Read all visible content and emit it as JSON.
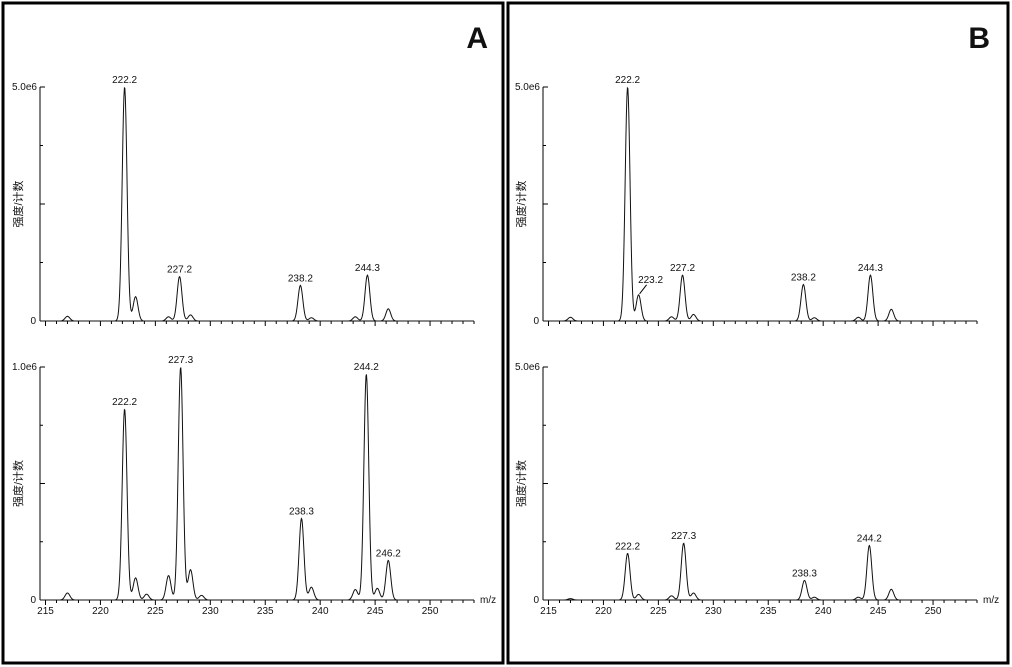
{
  "panels": [
    {
      "label": "A"
    },
    {
      "label": "B"
    }
  ],
  "chart_data": [
    {
      "type": "line",
      "panel": "A",
      "position": "top",
      "ylabel": "强度/计数",
      "xlabel": "",
      "ylim": [
        0,
        5000000
      ],
      "y_max_label": "5.0e6",
      "y_zero_label": "0",
      "xlim": [
        214.5,
        254.0
      ],
      "x_ticks": [],
      "peaks": [
        {
          "x": 217.0,
          "y": 100000
        },
        {
          "x": 222.2,
          "y": 5000000,
          "label": "222.2"
        },
        {
          "x": 223.2,
          "y": 520000
        },
        {
          "x": 226.2,
          "y": 90000
        },
        {
          "x": 227.2,
          "y": 950000,
          "label": "227.2"
        },
        {
          "x": 228.2,
          "y": 130000
        },
        {
          "x": 238.2,
          "y": 760000,
          "label": "238.2"
        },
        {
          "x": 239.2,
          "y": 70000
        },
        {
          "x": 243.2,
          "y": 90000
        },
        {
          "x": 244.3,
          "y": 980000,
          "label": "244.3"
        },
        {
          "x": 246.2,
          "y": 260000
        }
      ]
    },
    {
      "type": "line",
      "panel": "A",
      "position": "bottom",
      "ylabel": "强度/计数",
      "xlabel": "m/z",
      "ylim": [
        0,
        1000000
      ],
      "y_max_label": "1.0e6",
      "y_zero_label": "0",
      "xlim": [
        214.5,
        254.0
      ],
      "x_ticks": [
        215,
        220,
        225,
        230,
        235,
        240,
        245,
        250
      ],
      "peaks": [
        {
          "x": 217.0,
          "y": 30000
        },
        {
          "x": 222.2,
          "y": 820000,
          "label": "222.2"
        },
        {
          "x": 223.2,
          "y": 95000
        },
        {
          "x": 224.2,
          "y": 25000
        },
        {
          "x": 226.2,
          "y": 105000
        },
        {
          "x": 227.3,
          "y": 1000000,
          "label": "227.3"
        },
        {
          "x": 228.2,
          "y": 130000
        },
        {
          "x": 229.2,
          "y": 20000
        },
        {
          "x": 238.3,
          "y": 350000,
          "label": "238.3"
        },
        {
          "x": 239.2,
          "y": 55000
        },
        {
          "x": 243.2,
          "y": 45000
        },
        {
          "x": 244.2,
          "y": 970000,
          "label": "244.2"
        },
        {
          "x": 245.2,
          "y": 50000
        },
        {
          "x": 246.2,
          "y": 170000,
          "label": "246.2"
        }
      ]
    },
    {
      "type": "line",
      "panel": "B",
      "position": "top",
      "ylabel": "强度/计数",
      "xlabel": "",
      "ylim": [
        0,
        5000000
      ],
      "y_max_label": "5.0e6",
      "y_zero_label": "0",
      "xlim": [
        214.5,
        254.0
      ],
      "x_ticks": [],
      "peaks": [
        {
          "x": 217.0,
          "y": 80000
        },
        {
          "x": 222.2,
          "y": 5000000,
          "label": "222.2"
        },
        {
          "x": 223.2,
          "y": 560000,
          "label": "223.2"
        },
        {
          "x": 226.2,
          "y": 90000
        },
        {
          "x": 227.2,
          "y": 980000,
          "label": "227.2"
        },
        {
          "x": 228.2,
          "y": 140000
        },
        {
          "x": 238.2,
          "y": 780000,
          "label": "238.2"
        },
        {
          "x": 239.2,
          "y": 70000
        },
        {
          "x": 243.2,
          "y": 80000
        },
        {
          "x": 244.3,
          "y": 980000,
          "label": "244.3"
        },
        {
          "x": 246.2,
          "y": 250000
        }
      ]
    },
    {
      "type": "line",
      "panel": "B",
      "position": "bottom",
      "ylabel": "强度/计数",
      "xlabel": "m/z",
      "ylim": [
        0,
        5000000
      ],
      "y_max_label": "5.0e6",
      "y_zero_label": "0",
      "xlim": [
        214.5,
        254.0
      ],
      "x_ticks": [
        215,
        220,
        225,
        230,
        235,
        240,
        245,
        250
      ],
      "peaks": [
        {
          "x": 217.0,
          "y": 30000
        },
        {
          "x": 222.2,
          "y": 1000000,
          "label": "222.2"
        },
        {
          "x": 223.2,
          "y": 120000
        },
        {
          "x": 226.2,
          "y": 90000
        },
        {
          "x": 227.3,
          "y": 1220000,
          "label": "227.3"
        },
        {
          "x": 228.2,
          "y": 150000
        },
        {
          "x": 238.3,
          "y": 420000,
          "label": "238.3"
        },
        {
          "x": 239.2,
          "y": 60000
        },
        {
          "x": 243.2,
          "y": 60000
        },
        {
          "x": 244.2,
          "y": 1170000,
          "label": "244.2"
        },
        {
          "x": 246.2,
          "y": 230000
        }
      ]
    }
  ]
}
